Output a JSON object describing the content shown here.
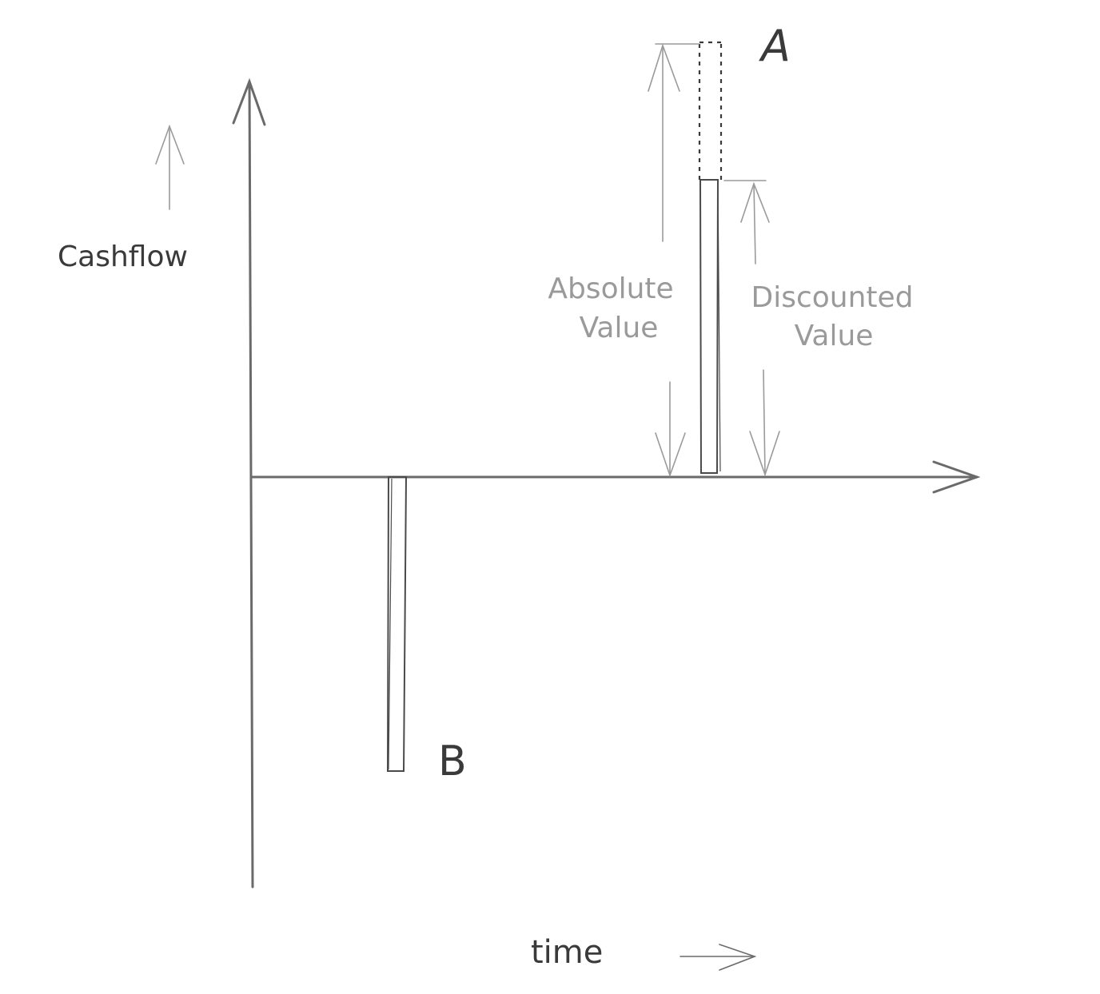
{
  "labels": {
    "y_axis": "Cashflow",
    "x_axis": "time",
    "bar_a": "A",
    "bar_b": "B",
    "absolute_line1": "Absolute",
    "absolute_line2": "Value",
    "discounted_line1": "Discounted",
    "discounted_line2": "Value"
  },
  "colors": {
    "axis": "#6a6a6a",
    "ink": "#3a3a3a",
    "annotation": "#9a9a9a"
  }
}
